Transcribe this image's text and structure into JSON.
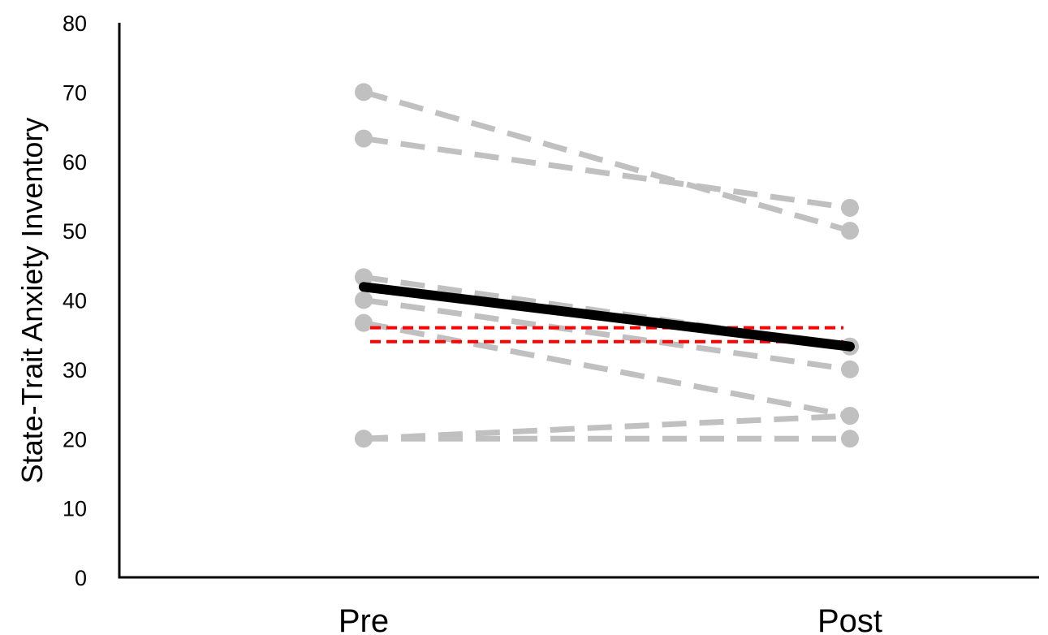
{
  "chart_data": {
    "type": "line",
    "title": "",
    "xlabel": "",
    "ylabel": "State-Trait Anxiety Inventory",
    "categories": [
      "Pre",
      "Post"
    ],
    "ylim": [
      0,
      80
    ],
    "yticks": [
      0,
      10,
      20,
      30,
      40,
      50,
      60,
      70,
      80
    ],
    "grid": false,
    "legend": "none",
    "individual_series": [
      {
        "values": [
          70,
          50
        ]
      },
      {
        "values": [
          63.3,
          53.3
        ]
      },
      {
        "values": [
          43.3,
          33.3
        ]
      },
      {
        "values": [
          40,
          30
        ]
      },
      {
        "values": [
          36.7,
          23.3
        ]
      },
      {
        "values": [
          20,
          23.3
        ]
      },
      {
        "values": [
          20,
          20
        ]
      }
    ],
    "mean_series": {
      "values": [
        41.9,
        33.3
      ]
    },
    "reference_lines": [
      {
        "y": 36
      },
      {
        "y": 34
      }
    ],
    "colors": {
      "individual": "#c0c0c0",
      "mean": "#000000",
      "reference": "#ff0000",
      "axis": "#000000"
    }
  }
}
